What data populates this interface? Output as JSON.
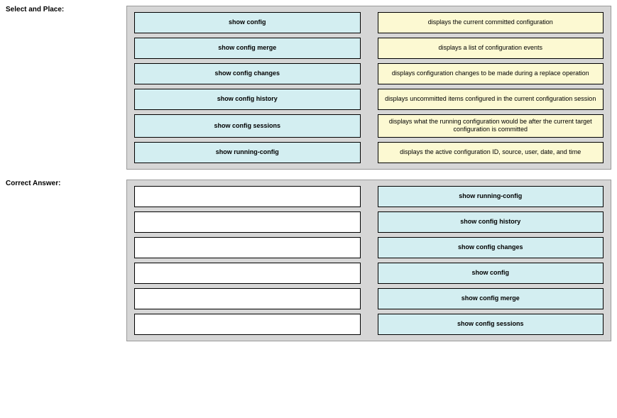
{
  "labels": {
    "select_place": "Select and Place:",
    "correct_answer": "Correct Answer:"
  },
  "colors": {
    "panel_bg": "#d6d6d6",
    "panel_border": "#9a9a9a",
    "cell_border": "#000000",
    "blue_fill": "#d3eef1",
    "yellow_fill": "#fcf9d2",
    "white_fill": "#ffffff",
    "text": "#000000"
  },
  "top_panel": {
    "left": [
      "show config",
      "show config merge",
      "show config changes",
      "show config history",
      "show config sessions",
      "show running-config"
    ],
    "right": [
      "displays the current committed configuration",
      "displays a list of configuration events",
      "displays configuration changes to be made during a replace operation",
      "displays uncommitted items configured in the current configuration session",
      "displays what the running configuration would be after the current target configuration is committed",
      "displays the active configuration ID, source, user, date, and time"
    ]
  },
  "bottom_panel": {
    "left": [
      "",
      "",
      "",
      "",
      "",
      ""
    ],
    "right": [
      "show running-config",
      "show config history",
      "show config changes",
      "show config",
      "show config merge",
      "show config sessions"
    ]
  }
}
